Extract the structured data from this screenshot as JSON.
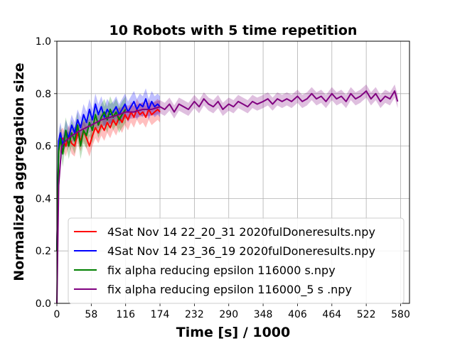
{
  "chart_data": {
    "type": "line",
    "title": "10 Robots with 5 time repetition",
    "xlabel": "Time [s] / 1000",
    "ylabel": "Normalized aggregation size",
    "xlim": [
      0,
      595
    ],
    "ylim": [
      0.0,
      1.0
    ],
    "xticks": [
      0,
      58,
      116,
      174,
      232,
      290,
      348,
      406,
      464,
      522,
      580
    ],
    "yticks": [
      "0.0",
      "0.2",
      "0.4",
      "0.6",
      "0.8",
      "1.0"
    ],
    "grid": true,
    "legend_position": "lower-right",
    "series": [
      {
        "name": "4Sat Nov 14 22_20_31 2020fulDoneresults.npy",
        "color": "#ff0000",
        "band": 0.04,
        "x": [
          0,
          3,
          6,
          10,
          15,
          20,
          25,
          30,
          35,
          40,
          45,
          50,
          55,
          60,
          65,
          70,
          75,
          80,
          85,
          90,
          95,
          100,
          105,
          110,
          115,
          120,
          125,
          130,
          135,
          140,
          145,
          150,
          155,
          160,
          165,
          170,
          174
        ],
        "y": [
          0.2,
          0.6,
          0.62,
          0.63,
          0.6,
          0.64,
          0.61,
          0.6,
          0.65,
          0.62,
          0.66,
          0.63,
          0.6,
          0.64,
          0.67,
          0.65,
          0.68,
          0.66,
          0.69,
          0.67,
          0.7,
          0.68,
          0.71,
          0.69,
          0.72,
          0.7,
          0.73,
          0.71,
          0.74,
          0.72,
          0.73,
          0.71,
          0.74,
          0.72,
          0.73,
          0.74,
          0.73
        ]
      },
      {
        "name": "4Sat Nov 14 23_36_19 2020fulDoneresults.npy",
        "color": "#0000ff",
        "band": 0.04,
        "x": [
          0,
          3,
          6,
          10,
          15,
          20,
          25,
          30,
          35,
          40,
          45,
          50,
          55,
          60,
          65,
          70,
          75,
          80,
          85,
          90,
          95,
          100,
          105,
          110,
          115,
          120,
          125,
          130,
          135,
          140,
          145,
          150,
          155,
          160,
          165,
          170,
          174
        ],
        "y": [
          0.2,
          0.62,
          0.65,
          0.6,
          0.66,
          0.63,
          0.68,
          0.65,
          0.7,
          0.67,
          0.72,
          0.69,
          0.74,
          0.7,
          0.76,
          0.72,
          0.75,
          0.71,
          0.74,
          0.72,
          0.73,
          0.75,
          0.72,
          0.74,
          0.76,
          0.73,
          0.75,
          0.77,
          0.74,
          0.76,
          0.75,
          0.78,
          0.74,
          0.77,
          0.75,
          0.76,
          0.75
        ]
      },
      {
        "name": "fix alpha reducing epsilon  116000 s.npy",
        "color": "#008000",
        "band": 0.05,
        "x": [
          0,
          3,
          6,
          10,
          15,
          20,
          25,
          30,
          35,
          40,
          45,
          50,
          55,
          60,
          65,
          70,
          75,
          80,
          85,
          90,
          95,
          100,
          105,
          110,
          116
        ],
        "y": [
          0.2,
          0.58,
          0.63,
          0.57,
          0.66,
          0.6,
          0.65,
          0.62,
          0.68,
          0.6,
          0.66,
          0.64,
          0.69,
          0.66,
          0.72,
          0.68,
          0.71,
          0.73,
          0.7,
          0.74,
          0.71,
          0.73,
          0.7,
          0.72,
          0.74
        ]
      },
      {
        "name": "fix alpha reducing epsilon  116000_5 s .npy",
        "color": "#800080",
        "band": 0.025,
        "x": [
          0,
          3,
          8,
          15,
          25,
          40,
          58,
          75,
          90,
          105,
          116,
          130,
          145,
          160,
          174,
          182,
          190,
          198,
          206,
          214,
          222,
          232,
          240,
          248,
          256,
          264,
          272,
          280,
          290,
          298,
          306,
          314,
          322,
          330,
          338,
          348,
          356,
          364,
          372,
          380,
          388,
          396,
          406,
          414,
          422,
          430,
          438,
          446,
          454,
          464,
          472,
          480,
          488,
          496,
          504,
          512,
          522,
          530,
          538,
          546,
          554,
          562,
          570,
          575
        ],
        "y": [
          0.0,
          0.45,
          0.6,
          0.62,
          0.64,
          0.66,
          0.68,
          0.7,
          0.71,
          0.72,
          0.73,
          0.73,
          0.74,
          0.74,
          0.75,
          0.74,
          0.76,
          0.73,
          0.76,
          0.75,
          0.74,
          0.77,
          0.75,
          0.78,
          0.76,
          0.75,
          0.77,
          0.74,
          0.76,
          0.75,
          0.77,
          0.76,
          0.75,
          0.77,
          0.76,
          0.77,
          0.78,
          0.76,
          0.78,
          0.77,
          0.78,
          0.77,
          0.79,
          0.77,
          0.78,
          0.8,
          0.78,
          0.79,
          0.77,
          0.8,
          0.78,
          0.79,
          0.77,
          0.8,
          0.78,
          0.79,
          0.81,
          0.78,
          0.8,
          0.77,
          0.79,
          0.78,
          0.81,
          0.77
        ]
      }
    ]
  }
}
